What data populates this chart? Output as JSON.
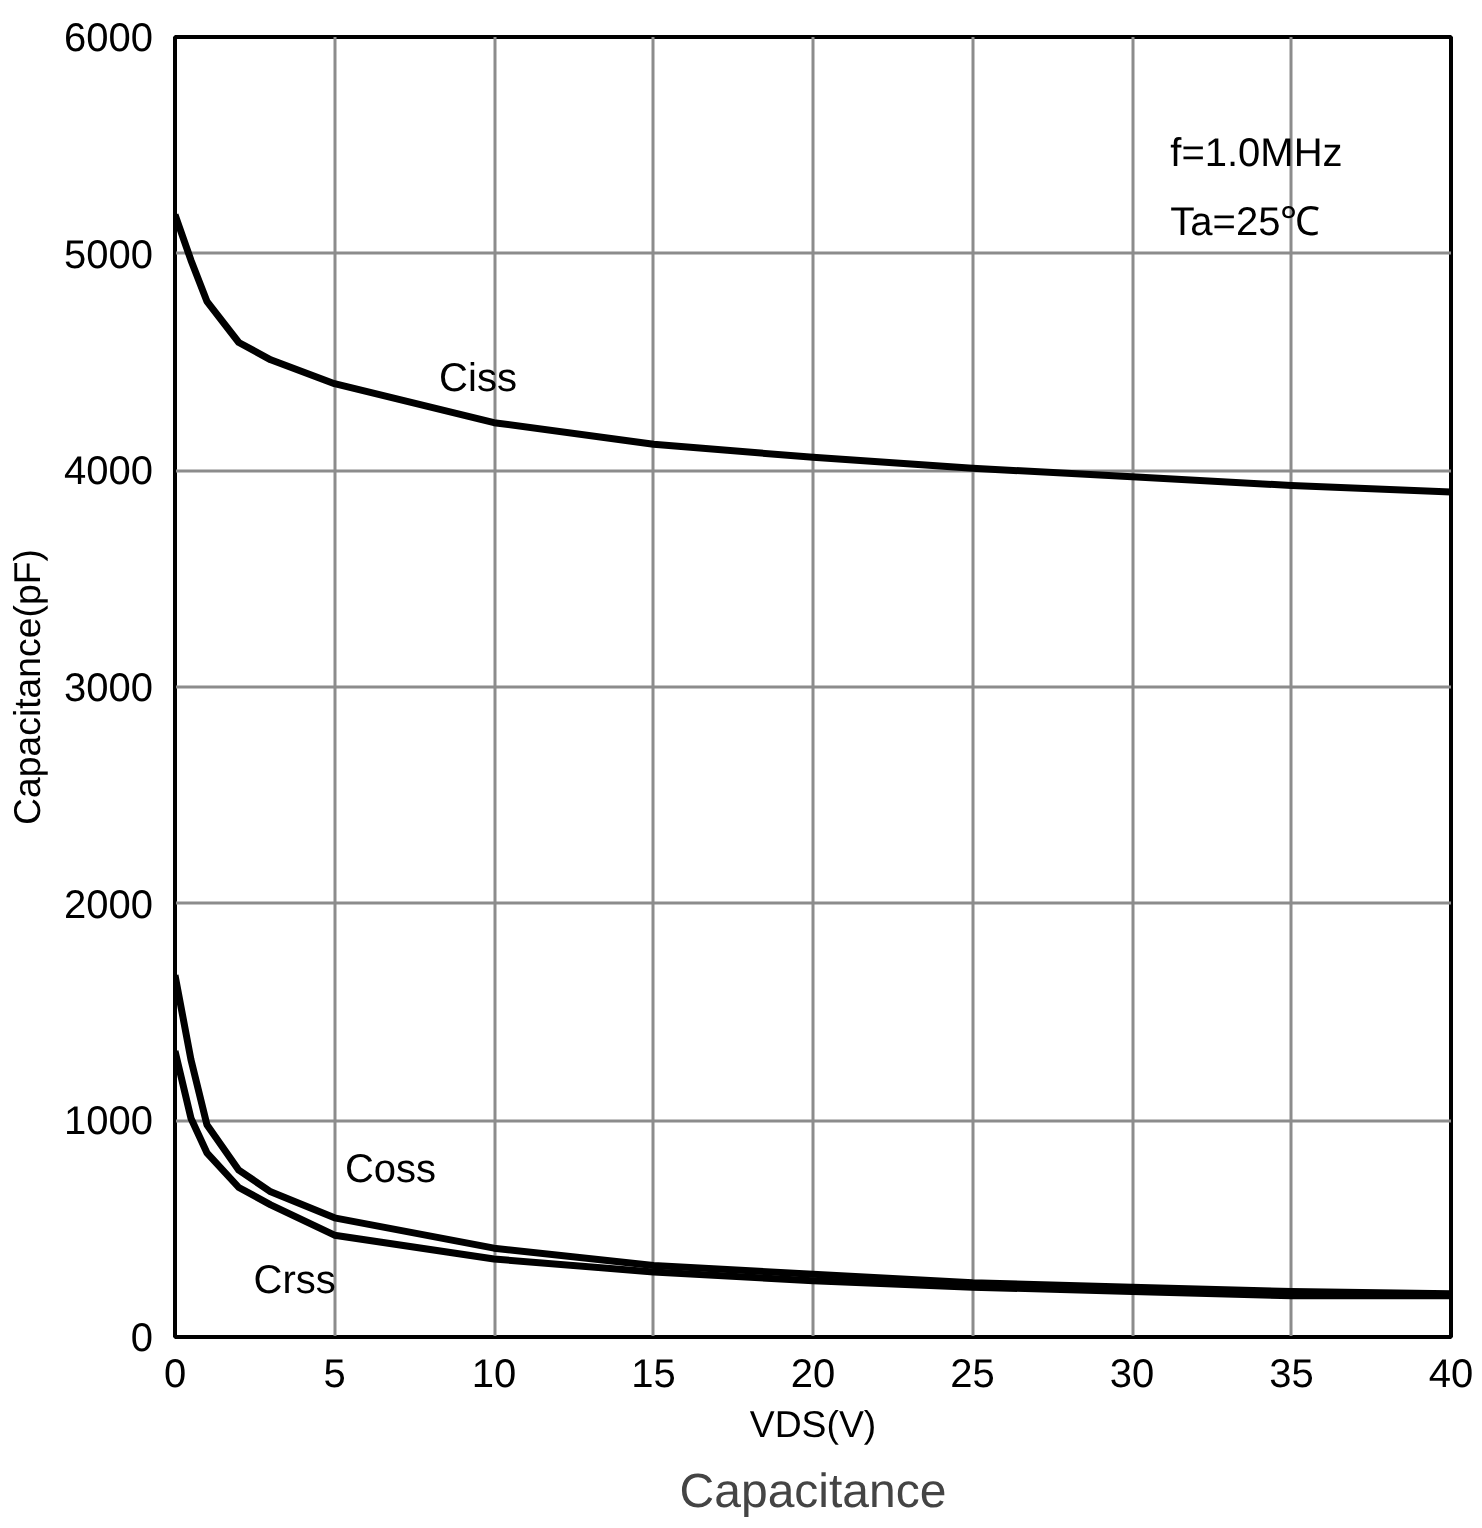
{
  "chart_data": {
    "type": "line",
    "title": "Capacitance",
    "xlabel": "VDS(V)",
    "ylabel": "Capacitance(pF)",
    "xlim": [
      0,
      40
    ],
    "ylim": [
      0,
      6000
    ],
    "xticks": [
      0,
      5,
      10,
      15,
      20,
      25,
      30,
      35,
      40
    ],
    "yticks": [
      0,
      1000,
      2000,
      3000,
      4000,
      5000,
      6000
    ],
    "grid": true,
    "marker": "none",
    "line_style": "solid",
    "series": [
      {
        "name": "Ciss",
        "color": "#000000",
        "x": [
          0,
          0.5,
          1,
          2,
          3,
          5,
          10,
          15,
          20,
          25,
          30,
          35,
          40
        ],
        "values": [
          5180,
          4970,
          4780,
          4590,
          4510,
          4400,
          4220,
          4120,
          4060,
          4010,
          3970,
          3930,
          3900
        ]
      },
      {
        "name": "Coss",
        "color": "#000000",
        "x": [
          0,
          0.5,
          1,
          2,
          3,
          5,
          10,
          15,
          20,
          25,
          30,
          35,
          40
        ],
        "values": [
          1670,
          1280,
          980,
          770,
          670,
          550,
          410,
          330,
          290,
          250,
          230,
          210,
          200
        ]
      },
      {
        "name": "Crss",
        "color": "#000000",
        "x": [
          0,
          0.5,
          1,
          2,
          3,
          5,
          10,
          15,
          20,
          25,
          30,
          35,
          40
        ],
        "values": [
          1320,
          1010,
          850,
          690,
          610,
          470,
          360,
          300,
          260,
          230,
          210,
          190,
          190
        ]
      }
    ],
    "annotations": [
      "f=1.0MHz",
      "Ta=25℃"
    ]
  }
}
